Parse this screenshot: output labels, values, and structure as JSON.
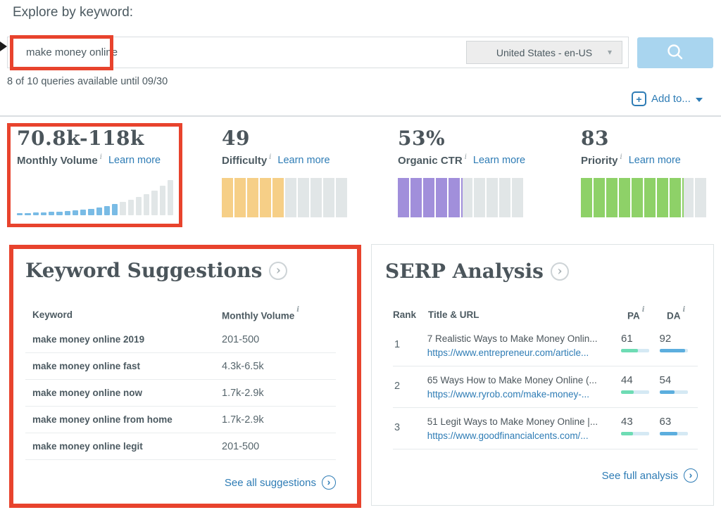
{
  "page": {
    "title": "Explore by keyword:"
  },
  "ui": {
    "info_glyph": "i",
    "caret_down": "▾",
    "chevron": "›",
    "plus": "+"
  },
  "search": {
    "keyword": "make money online",
    "locale": "United States - en-US",
    "queries_note": "8 of 10 queries available until 09/30",
    "add_to_label": "Add to..."
  },
  "colors": {
    "annotation_red": "#e8432d",
    "link_blue": "#2e7cb5",
    "volume_blue": "#79bbe5",
    "difficulty_yellow": "#f6cf87",
    "ctr_purple": "#a18fdb",
    "priority_green": "#8ed168",
    "bar_gray": "#e1e6e7",
    "pa_fill": "#6edcb4",
    "da_fill": "#5caede",
    "search_button_blue": "#a9d5ef"
  },
  "metrics": [
    {
      "value": "70.8k-118k",
      "label": "Monthly Volume",
      "learn_more": "Learn more",
      "chart": {
        "type": "histogram",
        "heights": [
          3,
          3,
          4,
          4,
          5,
          5,
          6,
          7,
          8,
          9,
          11,
          13,
          16,
          19,
          22,
          26,
          30,
          35,
          42,
          50
        ],
        "highlight_count": 13,
        "highlight_color": "#79bbe5",
        "rest_color": "#e1e6e7",
        "max_height": 55
      }
    },
    {
      "value": "49",
      "label": "Difficulty",
      "learn_more": "Learn more",
      "chart": {
        "type": "meter",
        "color": "#f6cf87",
        "segments": [
          1,
          1,
          1,
          1,
          1,
          0,
          0,
          0,
          0,
          0
        ]
      }
    },
    {
      "value": "53%",
      "label": "Organic CTR",
      "learn_more": "Learn more",
      "chart": {
        "type": "meter",
        "color": "#a18fdb",
        "segments": [
          1,
          1,
          1,
          1,
          1,
          0.13,
          0,
          0,
          0,
          0
        ]
      }
    },
    {
      "value": "83",
      "label": "Priority",
      "learn_more": "Learn more",
      "chart": {
        "type": "meter",
        "color": "#8ed168",
        "segments": [
          1,
          1,
          1,
          1,
          1,
          1,
          1,
          1,
          0.13,
          0
        ]
      }
    }
  ],
  "keyword_suggestions": {
    "title": "Keyword Suggestions",
    "columns": {
      "keyword": "Keyword",
      "volume": "Monthly Volume"
    },
    "rows": [
      {
        "keyword": "make money online 2019",
        "volume": "201-500"
      },
      {
        "keyword": "make money online fast",
        "volume": "4.3k-6.5k"
      },
      {
        "keyword": "make money online now",
        "volume": "1.7k-2.9k"
      },
      {
        "keyword": "make money online from home",
        "volume": "1.7k-2.9k"
      },
      {
        "keyword": "make money online legit",
        "volume": "201-500"
      }
    ],
    "footer_link": "See all suggestions"
  },
  "serp_analysis": {
    "title": "SERP Analysis",
    "columns": {
      "rank": "Rank",
      "title_url": "Title & URL",
      "pa": "PA",
      "da": "DA"
    },
    "rows": [
      {
        "rank": "1",
        "title": "7 Realistic Ways to Make Money Onlin...",
        "url": "https://www.entrepreneur.com/article...",
        "pa": 61,
        "da": 92
      },
      {
        "rank": "2",
        "title": "65 Ways How to Make Money Online (...",
        "url": "https://www.ryrob.com/make-money-...",
        "pa": 44,
        "da": 54
      },
      {
        "rank": "3",
        "title": "51 Legit Ways to Make Money Online |...",
        "url": "https://www.goodfinancialcents.com/...",
        "pa": 43,
        "da": 63
      }
    ],
    "footer_link": "See full analysis"
  }
}
